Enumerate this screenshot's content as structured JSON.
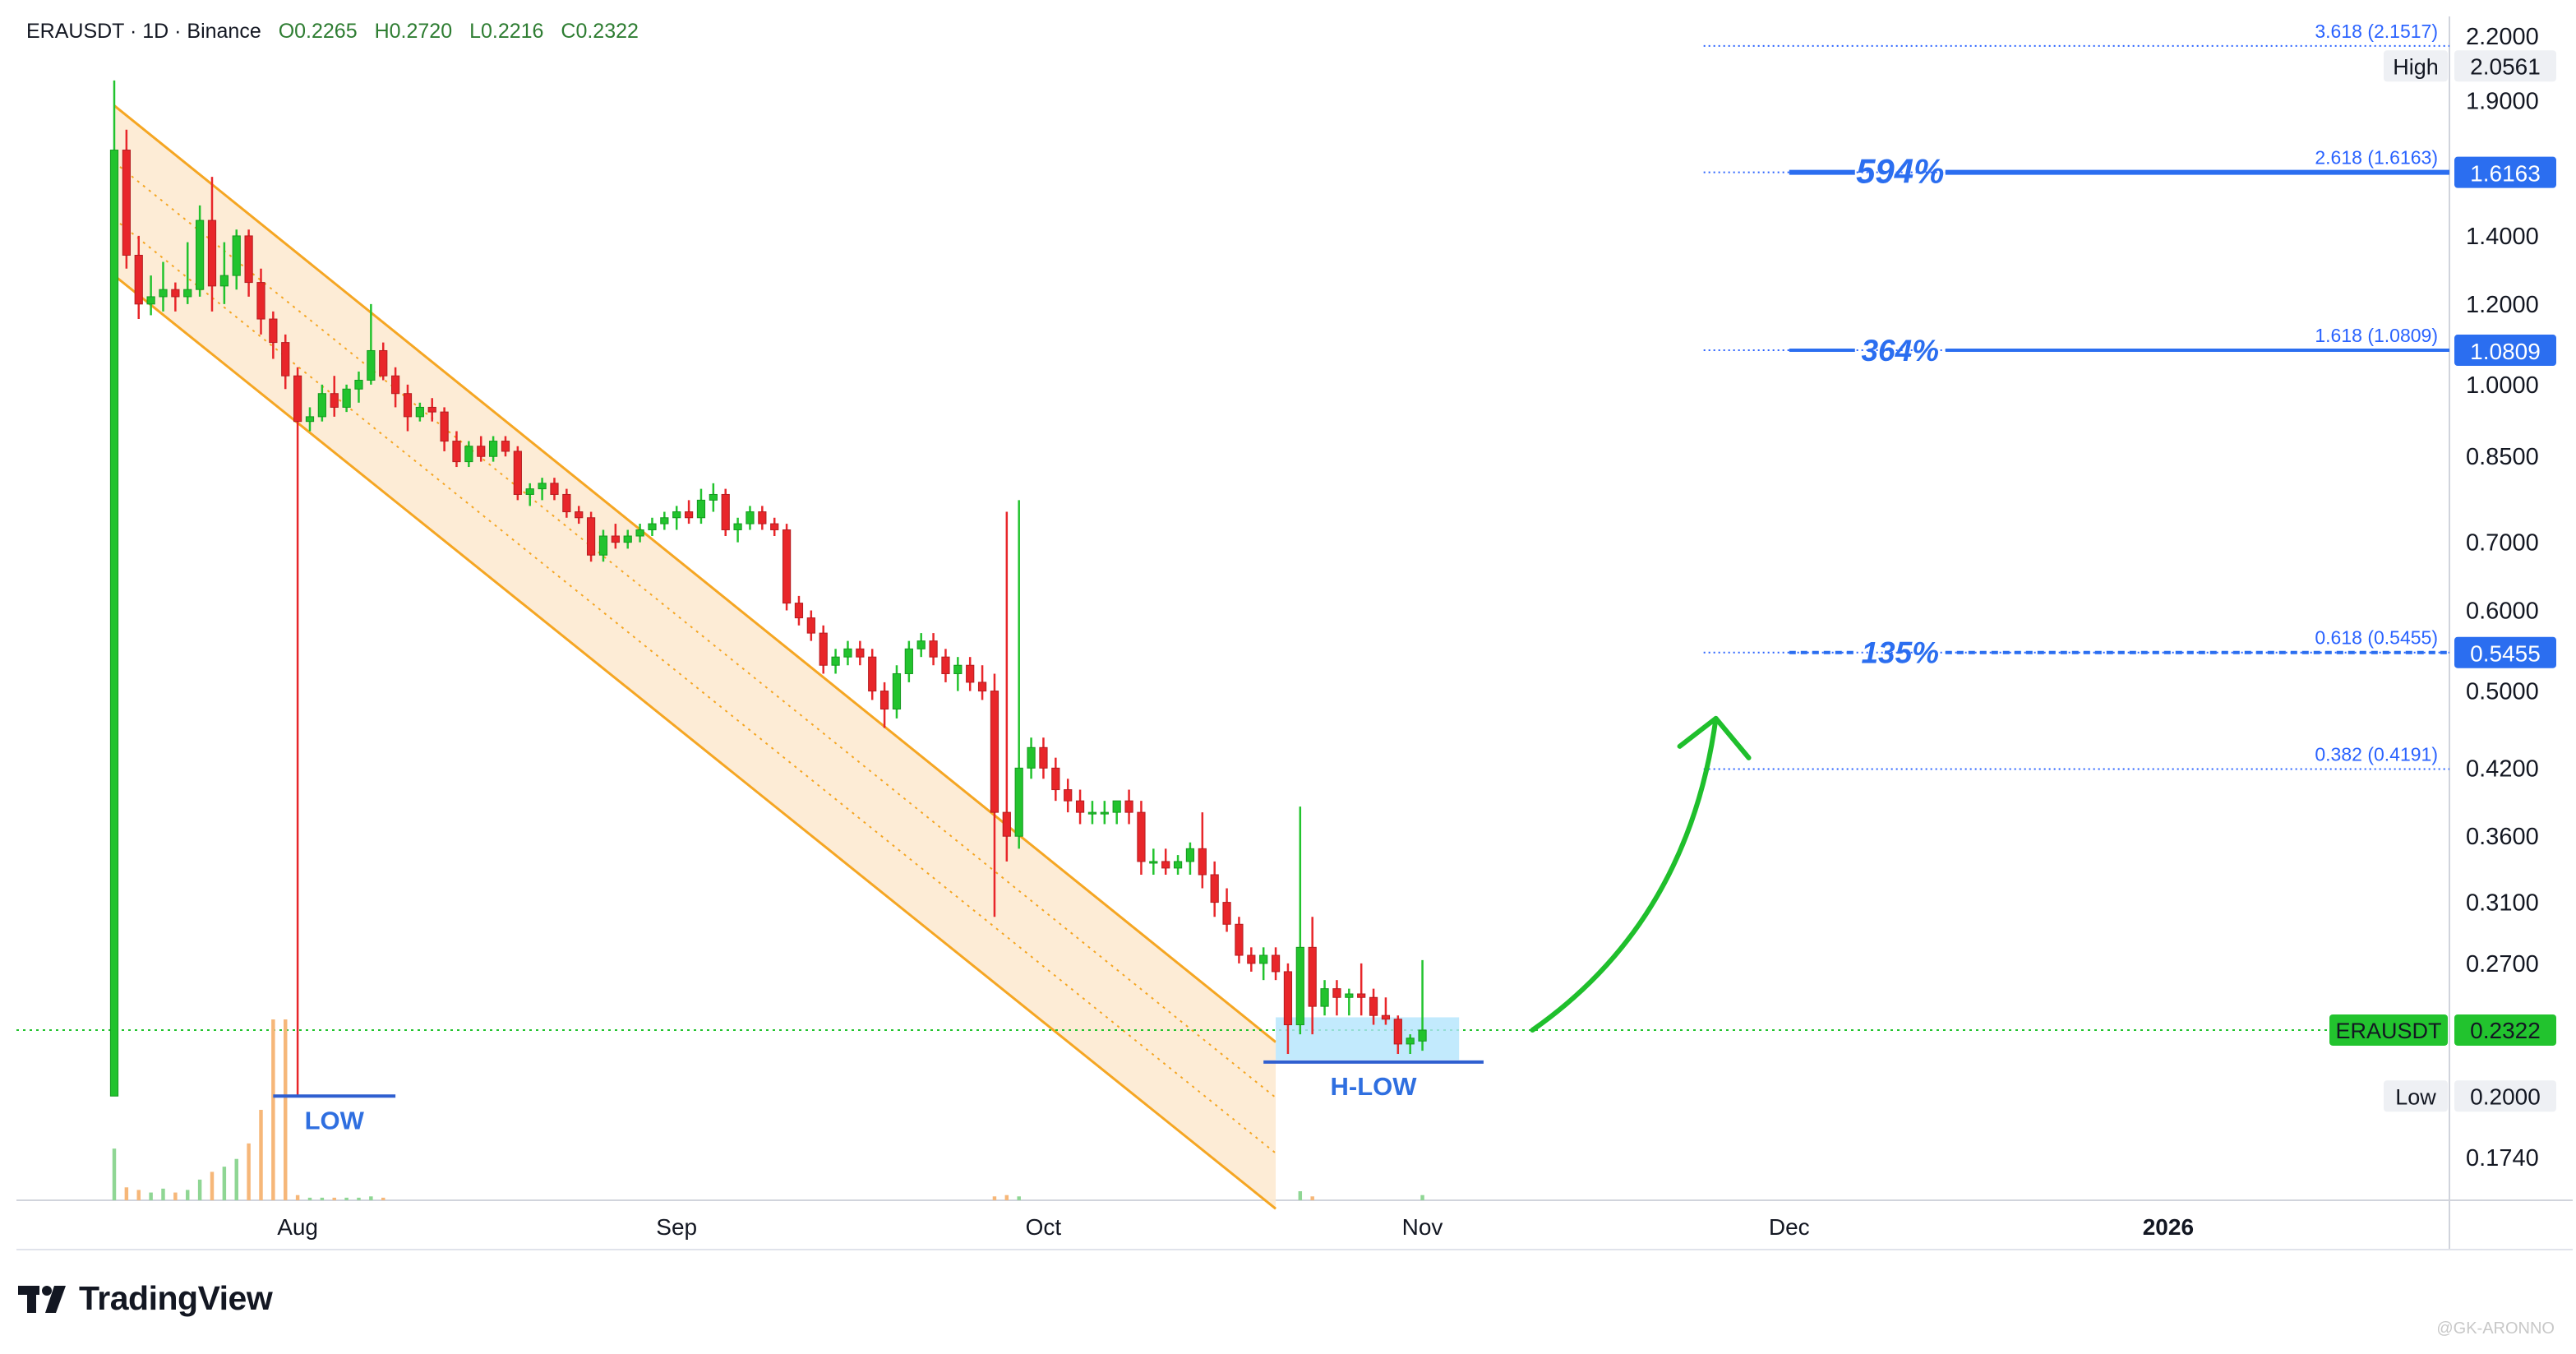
{
  "header": {
    "symbol": "ERAUSDT · 1D · Binance",
    "open": "O0.2265",
    "high": "H0.2720",
    "low": "L0.2216",
    "close": "C0.2322"
  },
  "brand": {
    "name": "TradingView",
    "icon": "tradingview-logo-icon"
  },
  "watermark": "@GK-ARONNO",
  "colors": {
    "up": "#22c32e",
    "down": "#e8262a",
    "channel": "#f5a623",
    "channel_fill": "#fde9cf",
    "fib": "#2962ff",
    "target": "#2b6ef0",
    "arrow": "#1fbf2c",
    "price_line": "#22c32e",
    "box": "#b3e5fc"
  },
  "chart_data": {
    "type": "candlestick",
    "symbol": "ERAUSDT",
    "timeframe": "1D",
    "exchange": "Binance",
    "y_scale": "log",
    "ylim": [
      0.158,
      2.3
    ],
    "y_ticks": [
      "2.2000",
      "1.9000",
      "1.4000",
      "1.2000",
      "1.0000",
      "0.8500",
      "0.7000",
      "0.6000",
      "0.5000",
      "0.4200",
      "0.3600",
      "0.3100",
      "0.2700",
      "0.1740"
    ],
    "x_ticks": [
      {
        "label": "Aug",
        "date": "2025-08-01"
      },
      {
        "label": "Sep",
        "date": "2025-09-01"
      },
      {
        "label": "Oct",
        "date": "2025-10-01"
      },
      {
        "label": "Nov",
        "date": "2025-11-01"
      },
      {
        "label": "Dec",
        "date": "2025-12-01"
      },
      {
        "label": "2026",
        "date": "2026-01-01"
      }
    ],
    "xlim": [
      "2025-07-09",
      "2026-01-24"
    ],
    "candles": [
      {
        "date": "2025-07-17",
        "o": 0.2,
        "h": 1.99,
        "l": 0.2,
        "c": 1.7
      },
      {
        "date": "2025-07-18",
        "o": 1.7,
        "h": 1.78,
        "l": 1.3,
        "c": 1.34
      },
      {
        "date": "2025-07-19",
        "o": 1.34,
        "h": 1.4,
        "l": 1.16,
        "c": 1.2
      },
      {
        "date": "2025-07-20",
        "o": 1.2,
        "h": 1.28,
        "l": 1.17,
        "c": 1.22
      },
      {
        "date": "2025-07-21",
        "o": 1.22,
        "h": 1.32,
        "l": 1.18,
        "c": 1.24
      },
      {
        "date": "2025-07-22",
        "o": 1.24,
        "h": 1.26,
        "l": 1.18,
        "c": 1.22
      },
      {
        "date": "2025-07-23",
        "o": 1.22,
        "h": 1.38,
        "l": 1.2,
        "c": 1.24
      },
      {
        "date": "2025-07-24",
        "o": 1.24,
        "h": 1.5,
        "l": 1.22,
        "c": 1.45
      },
      {
        "date": "2025-07-25",
        "o": 1.45,
        "h": 1.6,
        "l": 1.18,
        "c": 1.25
      },
      {
        "date": "2025-07-26",
        "o": 1.25,
        "h": 1.38,
        "l": 1.2,
        "c": 1.28
      },
      {
        "date": "2025-07-27",
        "o": 1.28,
        "h": 1.42,
        "l": 1.24,
        "c": 1.4
      },
      {
        "date": "2025-07-28",
        "o": 1.4,
        "h": 1.42,
        "l": 1.22,
        "c": 1.26
      },
      {
        "date": "2025-07-29",
        "o": 1.26,
        "h": 1.3,
        "l": 1.12,
        "c": 1.16
      },
      {
        "date": "2025-07-30",
        "o": 1.16,
        "h": 1.18,
        "l": 1.06,
        "c": 1.1
      },
      {
        "date": "2025-07-31",
        "o": 1.1,
        "h": 1.12,
        "l": 0.99,
        "c": 1.02
      },
      {
        "date": "2025-08-01",
        "o": 1.02,
        "h": 1.04,
        "l": 0.2,
        "c": 0.92
      },
      {
        "date": "2025-08-02",
        "o": 0.92,
        "h": 0.95,
        "l": 0.9,
        "c": 0.93
      },
      {
        "date": "2025-08-03",
        "o": 0.93,
        "h": 1.0,
        "l": 0.92,
        "c": 0.98
      },
      {
        "date": "2025-08-04",
        "o": 0.98,
        "h": 1.02,
        "l": 0.93,
        "c": 0.95
      },
      {
        "date": "2025-08-05",
        "o": 0.95,
        "h": 1.0,
        "l": 0.94,
        "c": 0.99
      },
      {
        "date": "2025-08-06",
        "o": 0.99,
        "h": 1.03,
        "l": 0.96,
        "c": 1.01
      },
      {
        "date": "2025-08-07",
        "o": 1.01,
        "h": 1.2,
        "l": 1.0,
        "c": 1.08
      },
      {
        "date": "2025-08-08",
        "o": 1.08,
        "h": 1.1,
        "l": 1.01,
        "c": 1.02
      },
      {
        "date": "2025-08-09",
        "o": 1.02,
        "h": 1.04,
        "l": 0.95,
        "c": 0.98
      },
      {
        "date": "2025-08-10",
        "o": 0.98,
        "h": 1.0,
        "l": 0.9,
        "c": 0.93
      },
      {
        "date": "2025-08-11",
        "o": 0.93,
        "h": 0.96,
        "l": 0.92,
        "c": 0.95
      },
      {
        "date": "2025-08-12",
        "o": 0.95,
        "h": 0.97,
        "l": 0.92,
        "c": 0.94
      },
      {
        "date": "2025-08-13",
        "o": 0.94,
        "h": 0.95,
        "l": 0.86,
        "c": 0.88
      },
      {
        "date": "2025-08-14",
        "o": 0.88,
        "h": 0.9,
        "l": 0.83,
        "c": 0.84
      },
      {
        "date": "2025-08-15",
        "o": 0.84,
        "h": 0.88,
        "l": 0.83,
        "c": 0.87
      },
      {
        "date": "2025-08-16",
        "o": 0.87,
        "h": 0.89,
        "l": 0.84,
        "c": 0.85
      },
      {
        "date": "2025-08-17",
        "o": 0.85,
        "h": 0.89,
        "l": 0.84,
        "c": 0.88
      },
      {
        "date": "2025-08-18",
        "o": 0.88,
        "h": 0.89,
        "l": 0.85,
        "c": 0.86
      },
      {
        "date": "2025-08-19",
        "o": 0.86,
        "h": 0.87,
        "l": 0.77,
        "c": 0.78
      },
      {
        "date": "2025-08-20",
        "o": 0.78,
        "h": 0.8,
        "l": 0.76,
        "c": 0.79
      },
      {
        "date": "2025-08-21",
        "o": 0.79,
        "h": 0.81,
        "l": 0.77,
        "c": 0.8
      },
      {
        "date": "2025-08-22",
        "o": 0.8,
        "h": 0.81,
        "l": 0.77,
        "c": 0.78
      },
      {
        "date": "2025-08-23",
        "o": 0.78,
        "h": 0.79,
        "l": 0.74,
        "c": 0.75
      },
      {
        "date": "2025-08-24",
        "o": 0.75,
        "h": 0.76,
        "l": 0.73,
        "c": 0.74
      },
      {
        "date": "2025-08-25",
        "o": 0.74,
        "h": 0.75,
        "l": 0.67,
        "c": 0.68
      },
      {
        "date": "2025-08-26",
        "o": 0.68,
        "h": 0.72,
        "l": 0.67,
        "c": 0.71
      },
      {
        "date": "2025-08-27",
        "o": 0.71,
        "h": 0.73,
        "l": 0.69,
        "c": 0.7
      },
      {
        "date": "2025-08-28",
        "o": 0.7,
        "h": 0.72,
        "l": 0.69,
        "c": 0.71
      },
      {
        "date": "2025-08-29",
        "o": 0.71,
        "h": 0.73,
        "l": 0.7,
        "c": 0.72
      },
      {
        "date": "2025-08-30",
        "o": 0.72,
        "h": 0.74,
        "l": 0.71,
        "c": 0.73
      },
      {
        "date": "2025-08-31",
        "o": 0.73,
        "h": 0.75,
        "l": 0.72,
        "c": 0.74
      },
      {
        "date": "2025-09-01",
        "o": 0.74,
        "h": 0.76,
        "l": 0.72,
        "c": 0.75
      },
      {
        "date": "2025-09-02",
        "o": 0.75,
        "h": 0.77,
        "l": 0.73,
        "c": 0.74
      },
      {
        "date": "2025-09-03",
        "o": 0.74,
        "h": 0.79,
        "l": 0.73,
        "c": 0.77
      },
      {
        "date": "2025-09-04",
        "o": 0.77,
        "h": 0.8,
        "l": 0.75,
        "c": 0.78
      },
      {
        "date": "2025-09-05",
        "o": 0.78,
        "h": 0.79,
        "l": 0.71,
        "c": 0.72
      },
      {
        "date": "2025-09-06",
        "o": 0.72,
        "h": 0.74,
        "l": 0.7,
        "c": 0.73
      },
      {
        "date": "2025-09-07",
        "o": 0.73,
        "h": 0.76,
        "l": 0.72,
        "c": 0.75
      },
      {
        "date": "2025-09-08",
        "o": 0.75,
        "h": 0.76,
        "l": 0.72,
        "c": 0.73
      },
      {
        "date": "2025-09-09",
        "o": 0.73,
        "h": 0.74,
        "l": 0.71,
        "c": 0.72
      },
      {
        "date": "2025-09-10",
        "o": 0.72,
        "h": 0.73,
        "l": 0.6,
        "c": 0.61
      },
      {
        "date": "2025-09-11",
        "o": 0.61,
        "h": 0.62,
        "l": 0.58,
        "c": 0.59
      },
      {
        "date": "2025-09-12",
        "o": 0.59,
        "h": 0.6,
        "l": 0.56,
        "c": 0.57
      },
      {
        "date": "2025-09-13",
        "o": 0.57,
        "h": 0.58,
        "l": 0.52,
        "c": 0.53
      },
      {
        "date": "2025-09-14",
        "o": 0.53,
        "h": 0.55,
        "l": 0.52,
        "c": 0.54
      },
      {
        "date": "2025-09-15",
        "o": 0.54,
        "h": 0.56,
        "l": 0.53,
        "c": 0.55
      },
      {
        "date": "2025-09-16",
        "o": 0.55,
        "h": 0.56,
        "l": 0.53,
        "c": 0.54
      },
      {
        "date": "2025-09-17",
        "o": 0.54,
        "h": 0.55,
        "l": 0.49,
        "c": 0.5
      },
      {
        "date": "2025-09-18",
        "o": 0.5,
        "h": 0.51,
        "l": 0.46,
        "c": 0.48
      },
      {
        "date": "2025-09-19",
        "o": 0.48,
        "h": 0.53,
        "l": 0.47,
        "c": 0.52
      },
      {
        "date": "2025-09-20",
        "o": 0.52,
        "h": 0.56,
        "l": 0.51,
        "c": 0.55
      },
      {
        "date": "2025-09-21",
        "o": 0.55,
        "h": 0.57,
        "l": 0.54,
        "c": 0.56
      },
      {
        "date": "2025-09-22",
        "o": 0.56,
        "h": 0.57,
        "l": 0.53,
        "c": 0.54
      },
      {
        "date": "2025-09-23",
        "o": 0.54,
        "h": 0.55,
        "l": 0.51,
        "c": 0.52
      },
      {
        "date": "2025-09-24",
        "o": 0.52,
        "h": 0.54,
        "l": 0.5,
        "c": 0.53
      },
      {
        "date": "2025-09-25",
        "o": 0.53,
        "h": 0.54,
        "l": 0.5,
        "c": 0.51
      },
      {
        "date": "2025-09-26",
        "o": 0.51,
        "h": 0.53,
        "l": 0.49,
        "c": 0.5
      },
      {
        "date": "2025-09-27",
        "o": 0.5,
        "h": 0.52,
        "l": 0.3,
        "c": 0.38
      },
      {
        "date": "2025-09-28",
        "o": 0.38,
        "h": 0.75,
        "l": 0.34,
        "c": 0.36
      },
      {
        "date": "2025-09-29",
        "o": 0.36,
        "h": 0.77,
        "l": 0.35,
        "c": 0.42
      },
      {
        "date": "2025-09-30",
        "o": 0.42,
        "h": 0.45,
        "l": 0.41,
        "c": 0.44
      },
      {
        "date": "2025-10-01",
        "o": 0.44,
        "h": 0.45,
        "l": 0.41,
        "c": 0.42
      },
      {
        "date": "2025-10-02",
        "o": 0.42,
        "h": 0.43,
        "l": 0.39,
        "c": 0.4
      },
      {
        "date": "2025-10-03",
        "o": 0.4,
        "h": 0.41,
        "l": 0.38,
        "c": 0.39
      },
      {
        "date": "2025-10-04",
        "o": 0.39,
        "h": 0.4,
        "l": 0.37,
        "c": 0.38
      },
      {
        "date": "2025-10-05",
        "o": 0.38,
        "h": 0.39,
        "l": 0.37,
        "c": 0.38
      },
      {
        "date": "2025-10-06",
        "o": 0.38,
        "h": 0.39,
        "l": 0.37,
        "c": 0.38
      },
      {
        "date": "2025-10-07",
        "o": 0.38,
        "h": 0.39,
        "l": 0.37,
        "c": 0.39
      },
      {
        "date": "2025-10-08",
        "o": 0.39,
        "h": 0.4,
        "l": 0.37,
        "c": 0.38
      },
      {
        "date": "2025-10-09",
        "o": 0.38,
        "h": 0.39,
        "l": 0.33,
        "c": 0.34
      },
      {
        "date": "2025-10-10",
        "o": 0.34,
        "h": 0.35,
        "l": 0.33,
        "c": 0.34
      },
      {
        "date": "2025-10-11",
        "o": 0.34,
        "h": 0.35,
        "l": 0.33,
        "c": 0.335
      },
      {
        "date": "2025-10-12",
        "o": 0.335,
        "h": 0.345,
        "l": 0.33,
        "c": 0.34
      },
      {
        "date": "2025-10-13",
        "o": 0.34,
        "h": 0.355,
        "l": 0.33,
        "c": 0.35
      },
      {
        "date": "2025-10-14",
        "o": 0.35,
        "h": 0.38,
        "l": 0.32,
        "c": 0.33
      },
      {
        "date": "2025-10-15",
        "o": 0.33,
        "h": 0.34,
        "l": 0.3,
        "c": 0.31
      },
      {
        "date": "2025-10-16",
        "o": 0.31,
        "h": 0.32,
        "l": 0.29,
        "c": 0.295
      },
      {
        "date": "2025-10-17",
        "o": 0.295,
        "h": 0.3,
        "l": 0.27,
        "c": 0.275
      },
      {
        "date": "2025-10-18",
        "o": 0.275,
        "h": 0.28,
        "l": 0.265,
        "c": 0.27
      },
      {
        "date": "2025-10-19",
        "o": 0.27,
        "h": 0.28,
        "l": 0.26,
        "c": 0.275
      },
      {
        "date": "2025-10-20",
        "o": 0.275,
        "h": 0.28,
        "l": 0.26,
        "c": 0.265
      },
      {
        "date": "2025-10-21",
        "o": 0.265,
        "h": 0.27,
        "l": 0.22,
        "c": 0.235
      },
      {
        "date": "2025-10-22",
        "o": 0.235,
        "h": 0.385,
        "l": 0.23,
        "c": 0.28
      },
      {
        "date": "2025-10-23",
        "o": 0.28,
        "h": 0.3,
        "l": 0.23,
        "c": 0.245
      },
      {
        "date": "2025-10-24",
        "o": 0.245,
        "h": 0.26,
        "l": 0.24,
        "c": 0.255
      },
      {
        "date": "2025-10-25",
        "o": 0.255,
        "h": 0.26,
        "l": 0.24,
        "c": 0.25
      },
      {
        "date": "2025-10-26",
        "o": 0.25,
        "h": 0.255,
        "l": 0.24,
        "c": 0.252
      },
      {
        "date": "2025-10-27",
        "o": 0.252,
        "h": 0.27,
        "l": 0.24,
        "c": 0.25
      },
      {
        "date": "2025-10-28",
        "o": 0.25,
        "h": 0.255,
        "l": 0.235,
        "c": 0.24
      },
      {
        "date": "2025-10-29",
        "o": 0.24,
        "h": 0.25,
        "l": 0.235,
        "c": 0.238
      },
      {
        "date": "2025-10-30",
        "o": 0.238,
        "h": 0.24,
        "l": 0.22,
        "c": 0.225
      },
      {
        "date": "2025-10-31",
        "o": 0.225,
        "h": 0.23,
        "l": 0.22,
        "c": 0.228
      },
      {
        "date": "2025-11-01",
        "o": 0.2265,
        "h": 0.272,
        "l": 0.2216,
        "c": 0.2322
      }
    ],
    "volume": [
      {
        "date": "2025-07-17",
        "v": 40,
        "dir": "up"
      },
      {
        "date": "2025-07-18",
        "v": 10,
        "dir": "down"
      },
      {
        "date": "2025-07-19",
        "v": 8,
        "dir": "down"
      },
      {
        "date": "2025-07-20",
        "v": 6,
        "dir": "up"
      },
      {
        "date": "2025-07-21",
        "v": 9,
        "dir": "up"
      },
      {
        "date": "2025-07-22",
        "v": 6,
        "dir": "down"
      },
      {
        "date": "2025-07-23",
        "v": 8,
        "dir": "up"
      },
      {
        "date": "2025-07-24",
        "v": 16,
        "dir": "up"
      },
      {
        "date": "2025-07-25",
        "v": 22,
        "dir": "down"
      },
      {
        "date": "2025-07-26",
        "v": 26,
        "dir": "up"
      },
      {
        "date": "2025-07-27",
        "v": 32,
        "dir": "up"
      },
      {
        "date": "2025-07-28",
        "v": 44,
        "dir": "down"
      },
      {
        "date": "2025-07-29",
        "v": 70,
        "dir": "down"
      },
      {
        "date": "2025-07-30",
        "v": 140,
        "dir": "down"
      },
      {
        "date": "2025-07-31",
        "v": 140,
        "dir": "down"
      },
      {
        "date": "2025-08-01",
        "v": 4,
        "dir": "down"
      },
      {
        "date": "2025-08-02",
        "v": 2,
        "dir": "up"
      },
      {
        "date": "2025-08-03",
        "v": 2,
        "dir": "up"
      },
      {
        "date": "2025-08-04",
        "v": 2,
        "dir": "down"
      },
      {
        "date": "2025-08-05",
        "v": 2,
        "dir": "up"
      },
      {
        "date": "2025-08-06",
        "v": 2,
        "dir": "up"
      },
      {
        "date": "2025-08-07",
        "v": 3,
        "dir": "up"
      },
      {
        "date": "2025-08-08",
        "v": 2,
        "dir": "down"
      },
      {
        "date": "2025-09-27",
        "v": 3,
        "dir": "down"
      },
      {
        "date": "2025-09-28",
        "v": 4,
        "dir": "down"
      },
      {
        "date": "2025-09-29",
        "v": 3,
        "dir": "up"
      },
      {
        "date": "2025-10-22",
        "v": 7,
        "dir": "up"
      },
      {
        "date": "2025-10-23",
        "v": 3,
        "dir": "down"
      },
      {
        "date": "2025-11-01",
        "v": 4,
        "dir": "up"
      }
    ],
    "channel": {
      "upper": [
        {
          "date": "2025-07-17",
          "price": 1.88
        },
        {
          "date": "2025-10-20",
          "price": 0.226
        }
      ],
      "lower": [
        {
          "date": "2025-07-17",
          "price": 1.28
        },
        {
          "date": "2025-10-20",
          "price": 0.155
        }
      ],
      "box_end_date": "2025-10-20"
    },
    "fib_levels": [
      {
        "label": "3.618 (2.1517)",
        "price": 2.1517
      },
      {
        "label": "2.618 (1.6163)",
        "price": 1.6163
      },
      {
        "label": "1.618 (1.0809)",
        "price": 1.0809
      },
      {
        "label": "0.618 (0.5455)",
        "price": 0.5455
      },
      {
        "label": "0.382 (0.4191)",
        "price": 0.4191
      }
    ],
    "fib_start_date": "2025-11-24",
    "targets": [
      {
        "label": "594%",
        "price": 1.6163,
        "badge": "1.6163",
        "style": "solid-thick"
      },
      {
        "label": "364%",
        "price": 1.0809,
        "badge": "1.0809",
        "style": "solid"
      },
      {
        "label": "135%",
        "price": 0.5455,
        "badge": "0.5455",
        "style": "dashed"
      }
    ],
    "target_start_date": "2025-12-01",
    "price_markers": [
      {
        "label": "High",
        "price": 2.0561,
        "value": "2.0561"
      },
      {
        "label": "Low",
        "price": 0.2,
        "value": "0.2000"
      }
    ],
    "last_price": {
      "label": "ERAUSDT",
      "price": 0.2322,
      "value": "0.2322"
    },
    "annotations": [
      {
        "text": "LOW",
        "price": 0.2,
        "start": "2025-07-30",
        "end": "2025-08-09"
      },
      {
        "text": "H-LOW",
        "price": 0.216,
        "start": "2025-10-19",
        "end": "2025-11-06"
      }
    ],
    "accumulation_box": {
      "start": "2025-10-20",
      "end": "2025-11-04",
      "top": 0.239,
      "bottom": 0.217
    },
    "arrow": {
      "from": {
        "date": "2025-11-10",
        "price": 0.2322
      },
      "to": {
        "date": "2025-11-25",
        "price": 0.47
      }
    }
  }
}
